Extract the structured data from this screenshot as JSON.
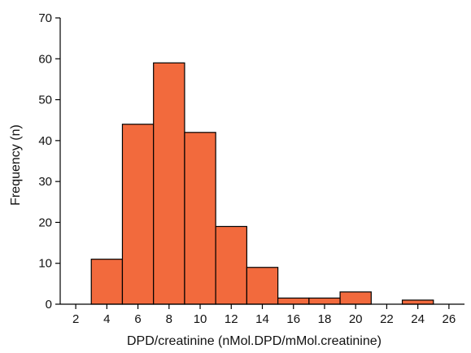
{
  "chart_data": {
    "type": "bar",
    "xlabel": "DPD/creatinine (nMol.DPD/mMol.creatinine)",
    "ylabel": "Frequency (n)",
    "xlim": [
      1,
      27
    ],
    "ylim": [
      0,
      70
    ],
    "x_ticks": [
      2,
      4,
      6,
      8,
      10,
      12,
      14,
      16,
      18,
      20,
      22,
      24,
      26
    ],
    "y_ticks": [
      0,
      10,
      20,
      30,
      40,
      50,
      60,
      70
    ],
    "bar_color": "#f26a3d",
    "grid": false,
    "bins": [
      {
        "center": 4,
        "value": 11
      },
      {
        "center": 6,
        "value": 44
      },
      {
        "center": 8,
        "value": 59
      },
      {
        "center": 10,
        "value": 42
      },
      {
        "center": 12,
        "value": 19
      },
      {
        "center": 14,
        "value": 9
      },
      {
        "center": 16,
        "value": 1.5
      },
      {
        "center": 18,
        "value": 1.5
      },
      {
        "center": 20,
        "value": 3
      },
      {
        "center": 22,
        "value": 0
      },
      {
        "center": 24,
        "value": 1
      }
    ]
  }
}
